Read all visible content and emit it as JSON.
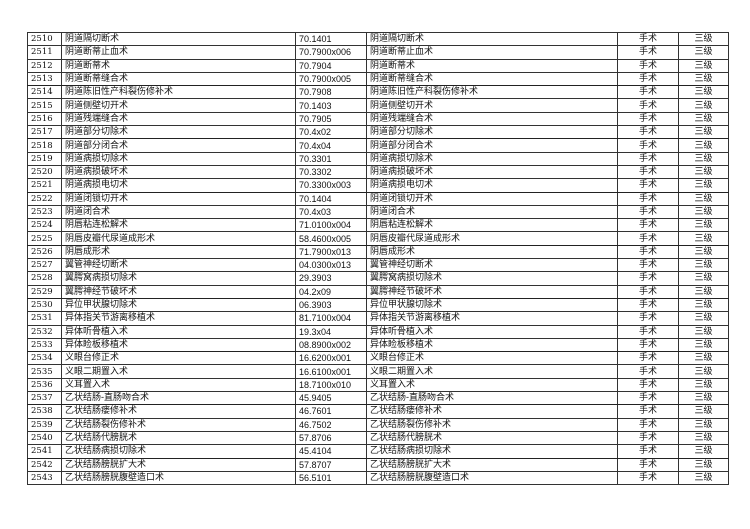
{
  "table": {
    "rows": [
      [
        "2510",
        "阴道隔切断术",
        "70.1401",
        "阴道隔切断术",
        "手术",
        "三级"
      ],
      [
        "2511",
        "阴道断蒂止血术",
        "70.7900x006",
        "阴道断蒂止血术",
        "手术",
        "三级"
      ],
      [
        "2512",
        "阴道断蒂术",
        "70.7904",
        "阴道断蒂术",
        "手术",
        "三级"
      ],
      [
        "2513",
        "阴道断蒂缝合术",
        "70.7900x005",
        "阴道断蒂缝合术",
        "手术",
        "三级"
      ],
      [
        "2514",
        "阴道陈旧性产科裂伤修补术",
        "70.7908",
        "阴道陈旧性产科裂伤修补术",
        "手术",
        "三级"
      ],
      [
        "2515",
        "阴道侧壁切开术",
        "70.1403",
        "阴道侧壁切开术",
        "手术",
        "三级"
      ],
      [
        "2516",
        "阴道残端缝合术",
        "70.7905",
        "阴道残端缝合术",
        "手术",
        "三级"
      ],
      [
        "2517",
        "阴道部分切除术",
        "70.4x02",
        "阴道部分切除术",
        "手术",
        "三级"
      ],
      [
        "2518",
        "阴道部分闭合术",
        "70.4x04",
        "阴道部分闭合术",
        "手术",
        "三级"
      ],
      [
        "2519",
        "阴道病损切除术",
        "70.3301",
        "阴道病损切除术",
        "手术",
        "三级"
      ],
      [
        "2520",
        "阴道病损破坏术",
        "70.3302",
        "阴道病损破坏术",
        "手术",
        "三级"
      ],
      [
        "2521",
        "阴道病损电切术",
        "70.3300x003",
        "阴道病损电切术",
        "手术",
        "三级"
      ],
      [
        "2522",
        "阴道闭锁切开术",
        "70.1404",
        "阴道闭锁切开术",
        "手术",
        "三级"
      ],
      [
        "2523",
        "阴道闭合术",
        "70.4x03",
        "阴道闭合术",
        "手术",
        "三级"
      ],
      [
        "2524",
        "阴唇粘连松解术",
        "71.0100x004",
        "阴唇粘连松解术",
        "手术",
        "三级"
      ],
      [
        "2525",
        "阴唇皮瓣代尿道成形术",
        "58.4600x005",
        "阴唇皮瓣代尿道成形术",
        "手术",
        "三级"
      ],
      [
        "2526",
        "阴唇成形术",
        "71.7900x013",
        "阴唇成形术",
        "手术",
        "三级"
      ],
      [
        "2527",
        "翼管神经切断术",
        "04.0300x013",
        "翼管神经切断术",
        "手术",
        "三级"
      ],
      [
        "2528",
        "翼腭窝病损切除术",
        "29.3903",
        "翼腭窝病损切除术",
        "手术",
        "三级"
      ],
      [
        "2529",
        "翼腭神经节破坏术",
        "04.2x09",
        "翼腭神经节破坏术",
        "手术",
        "三级"
      ],
      [
        "2530",
        "异位甲状腺切除术",
        "06.3903",
        "异位甲状腺切除术",
        "手术",
        "三级"
      ],
      [
        "2531",
        "异体指关节游离移植术",
        "81.7100x004",
        "异体指关节游离移植术",
        "手术",
        "三级"
      ],
      [
        "2532",
        "异体听骨植入术",
        "19.3x04",
        "异体听骨植入术",
        "手术",
        "三级"
      ],
      [
        "2533",
        "异体睑板移植术",
        "08.8900x002",
        "异体睑板移植术",
        "手术",
        "三级"
      ],
      [
        "2534",
        "义眼台修正术",
        "16.6200x001",
        "义眼台修正术",
        "手术",
        "三级"
      ],
      [
        "2535",
        "义眼二期置入术",
        "16.6100x001",
        "义眼二期置入术",
        "手术",
        "三级"
      ],
      [
        "2536",
        "义耳置入术",
        "18.7100x010",
        "义耳置入术",
        "手术",
        "三级"
      ],
      [
        "2537",
        "乙状结肠-直肠吻合术",
        "45.9405",
        "乙状结肠-直肠吻合术",
        "手术",
        "三级"
      ],
      [
        "2538",
        "乙状结肠瘘修补术",
        "46.7601",
        "乙状结肠瘘修补术",
        "手术",
        "三级"
      ],
      [
        "2539",
        "乙状结肠裂伤修补术",
        "46.7502",
        "乙状结肠裂伤修补术",
        "手术",
        "三级"
      ],
      [
        "2540",
        "乙状结肠代膀胱术",
        "57.8706",
        "乙状结肠代膀胱术",
        "手术",
        "三级"
      ],
      [
        "2541",
        "乙状结肠病损切除术",
        "45.4104",
        "乙状结肠病损切除术",
        "手术",
        "三级"
      ],
      [
        "2542",
        "乙状结肠膀胱扩大术",
        "57.8707",
        "乙状结肠膀胱扩大术",
        "手术",
        "三级"
      ],
      [
        "2543",
        "乙状结肠膀胱腹壁造口术",
        "56.5101",
        "乙状结肠膀胱腹壁造口术",
        "手术",
        "三级"
      ]
    ]
  }
}
